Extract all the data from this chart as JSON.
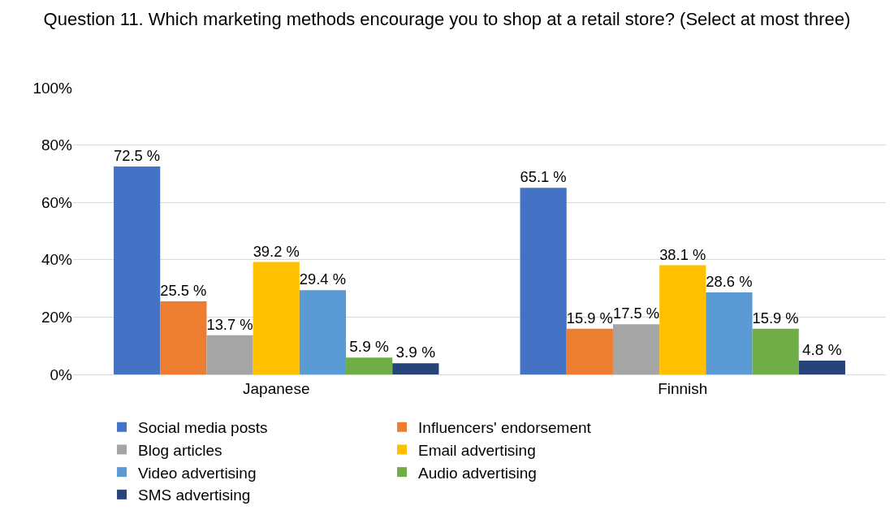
{
  "chart_data": {
    "type": "bar",
    "title": "Question 11. Which marketing methods encourage you to shop at a retail store? (Select at most three)",
    "categories": [
      "Japanese",
      "Finnish"
    ],
    "series": [
      {
        "name": "Social media posts",
        "color": "#4472c4",
        "values": [
          72.5,
          65.1
        ],
        "value_labels": [
          "72.5 %",
          "65.1 %"
        ]
      },
      {
        "name": "Influencers' endorsement",
        "color": "#ed7d31",
        "values": [
          25.5,
          15.9
        ],
        "value_labels": [
          "25.5 %",
          "15.9 %"
        ]
      },
      {
        "name": "Blog articles",
        "color": "#a5a5a5",
        "values": [
          13.7,
          17.5
        ],
        "value_labels": [
          "13.7 %",
          "17.5 %"
        ]
      },
      {
        "name": "Email advertising",
        "color": "#ffc000",
        "values": [
          39.2,
          38.1
        ],
        "value_labels": [
          "39.2 %",
          "38.1 %"
        ]
      },
      {
        "name": "Video advertising",
        "color": "#5b9bd5",
        "values": [
          29.4,
          28.6
        ],
        "value_labels": [
          "29.4 %",
          "28.6 %"
        ]
      },
      {
        "name": "Audio advertising",
        "color": "#70ad47",
        "values": [
          5.9,
          15.9
        ],
        "value_labels": [
          "5.9 %",
          "15.9 %"
        ]
      },
      {
        "name": "SMS advertising",
        "color": "#264478",
        "values": [
          3.9,
          4.8
        ],
        "value_labels": [
          "3.9 %",
          "4.8 %"
        ]
      }
    ],
    "ylim": [
      0,
      100
    ],
    "yticks": [
      {
        "value": 0,
        "label": "0%"
      },
      {
        "value": 20,
        "label": "20%"
      },
      {
        "value": 40,
        "label": "40%"
      },
      {
        "value": 60,
        "label": "60%"
      },
      {
        "value": 80,
        "label": "80%"
      },
      {
        "value": 100,
        "label": "100%"
      }
    ],
    "grid": "y",
    "legend": "bottom"
  }
}
